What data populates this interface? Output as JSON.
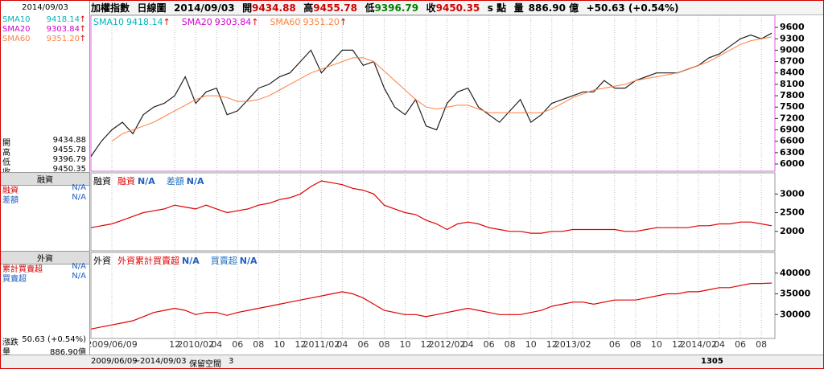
{
  "header": {
    "name": "加權指數",
    "period": "日線圖",
    "date": "2014/09/03",
    "open_label": "開",
    "open": "9434.88",
    "high_label": "高",
    "high": "9455.78",
    "low_label": "低",
    "low": "9396.79",
    "close_label": "收",
    "close": "9450.35",
    "unit": "s 點",
    "volume_label": "量",
    "volume": "886.90 億",
    "change": "+50.63 (+0.54%)"
  },
  "indicators": [
    {
      "name": "SMA10",
      "value": "9418.14",
      "color": "#00b4b4"
    },
    {
      "name": "SMA20",
      "value": "9303.84",
      "color": "#d000d0"
    },
    {
      "name": "SMA60",
      "value": "9351.20",
      "color": "#ff7f3f"
    }
  ],
  "arrow": "↑",
  "side_panel": {
    "date": "2014/09/03",
    "quote": [
      [
        "開",
        "9434.88"
      ],
      [
        "高",
        "9455.78"
      ],
      [
        "低",
        "9396.79"
      ],
      [
        "收",
        "9450.35"
      ]
    ],
    "margin": {
      "title": "融資",
      "rows": [
        [
          "融資",
          "N/A"
        ],
        [
          "差額",
          "N/A"
        ]
      ]
    },
    "foreign": {
      "title": "外資",
      "rows": [
        [
          "累計買賣超",
          "N/A"
        ],
        [
          "買賣超",
          "N/A"
        ]
      ]
    },
    "footer": [
      [
        "漲跌",
        "50.63 (+0.54%)"
      ],
      [
        "量",
        "886.90億"
      ]
    ]
  },
  "status_bar": {
    "start": "2009/06/09",
    "tilde": "~",
    "end": "2014/09/03",
    "reserve": "保留空間",
    "reserve_value": "3",
    "count": "1305"
  },
  "chart_data": [
    {
      "type": "line",
      "x": [
        -2,
        -1,
        0,
        1,
        2,
        3,
        4,
        5,
        6,
        7,
        8,
        9,
        10,
        11,
        12,
        13,
        14,
        15,
        16,
        17,
        18,
        19,
        20,
        21,
        22,
        23,
        24,
        25,
        26,
        27,
        28,
        29,
        30,
        31,
        32,
        33,
        34,
        35,
        36,
        37,
        38,
        39,
        40,
        41,
        42,
        43,
        44,
        45,
        46,
        47,
        48,
        49,
        50,
        51,
        52,
        53,
        54,
        55,
        56,
        57,
        58,
        59,
        60,
        61,
        62,
        63
      ],
      "xlim": [
        -2,
        63.3
      ],
      "ylim": [
        5810,
        9920
      ],
      "yticks": [
        6000,
        6300,
        6600,
        6900,
        7200,
        7500,
        7800,
        8100,
        8400,
        8700,
        9000,
        9300,
        9600
      ],
      "grid": true,
      "series": [
        {
          "color": "#202020",
          "values": [
            6200,
            6600,
            6900,
            7100,
            6800,
            7300,
            7500,
            7600,
            7800,
            8300,
            7600,
            7900,
            8000,
            7300,
            7400,
            7700,
            8000,
            8100,
            8300,
            8400,
            8700,
            9000,
            8400,
            8700,
            9000,
            9000,
            8600,
            8700,
            8000,
            7500,
            7300,
            7700,
            7000,
            6900,
            7600,
            7900,
            8000,
            7500,
            7300,
            7100,
            7400,
            7700,
            7100,
            7300,
            7600,
            7700,
            7800,
            7900,
            7900,
            8200,
            8000,
            8000,
            8200,
            8300,
            8400,
            8400,
            8400,
            8500,
            8600,
            8800,
            8900,
            9100,
            9300,
            9400,
            9300,
            9450
          ]
        },
        {
          "color": "#ff7f3f",
          "values": [
            null,
            null,
            6600,
            6800,
            6900,
            7000,
            7100,
            7250,
            7400,
            7550,
            7700,
            7800,
            7800,
            7750,
            7650,
            7650,
            7700,
            7800,
            7950,
            8100,
            8250,
            8400,
            8500,
            8600,
            8700,
            8800,
            8800,
            8700,
            8450,
            8200,
            7950,
            7700,
            7500,
            7450,
            7500,
            7550,
            7550,
            7450,
            7350,
            7350,
            7350,
            7350,
            7350,
            7350,
            7450,
            7600,
            7750,
            7850,
            7950,
            8000,
            8050,
            8100,
            8200,
            8250,
            8300,
            8350,
            8400,
            8500,
            8600,
            8700,
            8850,
            9000,
            9150,
            9250,
            9300,
            9350
          ]
        }
      ]
    },
    {
      "type": "line",
      "title": "融資",
      "legend": [
        {
          "name": "融資",
          "value": "N/A",
          "color": "#e00000"
        },
        {
          "name": "差額",
          "value": "N/A",
          "color": "#2070c0"
        }
      ],
      "x": [
        -2,
        -1,
        0,
        1,
        2,
        3,
        4,
        5,
        6,
        7,
        8,
        9,
        10,
        11,
        12,
        13,
        14,
        15,
        16,
        17,
        18,
        19,
        20,
        21,
        22,
        23,
        24,
        25,
        26,
        27,
        28,
        29,
        30,
        31,
        32,
        33,
        34,
        35,
        36,
        37,
        38,
        39,
        40,
        41,
        42,
        43,
        44,
        45,
        46,
        47,
        48,
        49,
        50,
        51,
        52,
        53,
        54,
        55,
        56,
        57,
        58,
        59,
        60,
        61,
        62,
        63
      ],
      "xlim": [
        -2,
        63.3
      ],
      "ylim": [
        1480,
        3565
      ],
      "yticks": [
        2000,
        2500,
        3000
      ],
      "grid": true,
      "series": [
        {
          "color": "#e00000",
          "values": [
            2100,
            2150,
            2200,
            2300,
            2400,
            2500,
            2550,
            2600,
            2700,
            2650,
            2600,
            2700,
            2600,
            2500,
            2550,
            2600,
            2700,
            2750,
            2850,
            2900,
            3000,
            3200,
            3350,
            3300,
            3250,
            3150,
            3100,
            3000,
            2700,
            2600,
            2500,
            2450,
            2300,
            2200,
            2050,
            2200,
            2250,
            2200,
            2100,
            2050,
            2000,
            2000,
            1950,
            1950,
            2000,
            2000,
            2050,
            2050,
            2050,
            2050,
            2050,
            2000,
            2000,
            2050,
            2100,
            2100,
            2100,
            2100,
            2150,
            2150,
            2200,
            2200,
            2250,
            2250,
            2200,
            2150
          ]
        }
      ]
    },
    {
      "type": "line",
      "title": "外資",
      "legend": [
        {
          "name": "外資累計買賣超",
          "value": "N/A",
          "color": "#e00000"
        },
        {
          "name": "買賣超",
          "value": "N/A",
          "color": "#2070c0"
        }
      ],
      "x": [
        -2,
        -1,
        0,
        1,
        2,
        3,
        4,
        5,
        6,
        7,
        8,
        9,
        10,
        11,
        12,
        13,
        14,
        15,
        16,
        17,
        18,
        19,
        20,
        21,
        22,
        23,
        24,
        25,
        26,
        27,
        28,
        29,
        30,
        31,
        32,
        33,
        34,
        35,
        36,
        37,
        38,
        39,
        40,
        41,
        42,
        43,
        44,
        45,
        46,
        47,
        48,
        49,
        50,
        51,
        52,
        53,
        54,
        55,
        56,
        57,
        58,
        59,
        60,
        61,
        62,
        63
      ],
      "xlim": [
        -2,
        63.3
      ],
      "ylim": [
        24230,
        45000
      ],
      "yticks": [
        30000,
        35000,
        40000
      ],
      "grid": true,
      "xticks": [
        {
          "value": 0,
          "label": "2009/06/09"
        },
        {
          "value": 6,
          "label": "12"
        },
        {
          "value": 8,
          "label": "2010/02"
        },
        {
          "value": 10,
          "label": "04"
        },
        {
          "value": 12,
          "label": "06"
        },
        {
          "value": 14,
          "label": "08"
        },
        {
          "value": 16,
          "label": "10"
        },
        {
          "value": 18,
          "label": "12"
        },
        {
          "value": 20,
          "label": "2011/02"
        },
        {
          "value": 22,
          "label": "04"
        },
        {
          "value": 24,
          "label": "06"
        },
        {
          "value": 26,
          "label": "08"
        },
        {
          "value": 28,
          "label": "10"
        },
        {
          "value": 30,
          "label": "12"
        },
        {
          "value": 32,
          "label": "2012/02"
        },
        {
          "value": 34,
          "label": "04"
        },
        {
          "value": 36,
          "label": "06"
        },
        {
          "value": 38,
          "label": "08"
        },
        {
          "value": 40,
          "label": "10"
        },
        {
          "value": 42,
          "label": "12"
        },
        {
          "value": 44,
          "label": "2013/02"
        },
        {
          "value": 48,
          "label": "06"
        },
        {
          "value": 50,
          "label": "08"
        },
        {
          "value": 52,
          "label": "10"
        },
        {
          "value": 54,
          "label": "12"
        },
        {
          "value": 56,
          "label": "2014/02"
        },
        {
          "value": 58,
          "label": "04"
        },
        {
          "value": 60,
          "label": "06"
        },
        {
          "value": 62,
          "label": "08"
        }
      ],
      "series": [
        {
          "color": "#e00000",
          "values": [
            26500,
            27000,
            27500,
            28000,
            28500,
            29500,
            30500,
            31000,
            31500,
            31000,
            30000,
            30500,
            30500,
            29800,
            30500,
            31000,
            31500,
            32000,
            32500,
            33000,
            33500,
            34000,
            34500,
            35000,
            35500,
            35000,
            34000,
            32500,
            31000,
            30500,
            30000,
            30000,
            29500,
            30000,
            30500,
            31000,
            31500,
            31000,
            30500,
            30000,
            30000,
            30000,
            30500,
            31000,
            32000,
            32500,
            33000,
            33000,
            32500,
            33000,
            33500,
            33500,
            33500,
            34000,
            34500,
            35000,
            35000,
            35500,
            35500,
            36000,
            36500,
            36500,
            37000,
            37500,
            37500,
            37600
          ]
        }
      ]
    }
  ]
}
